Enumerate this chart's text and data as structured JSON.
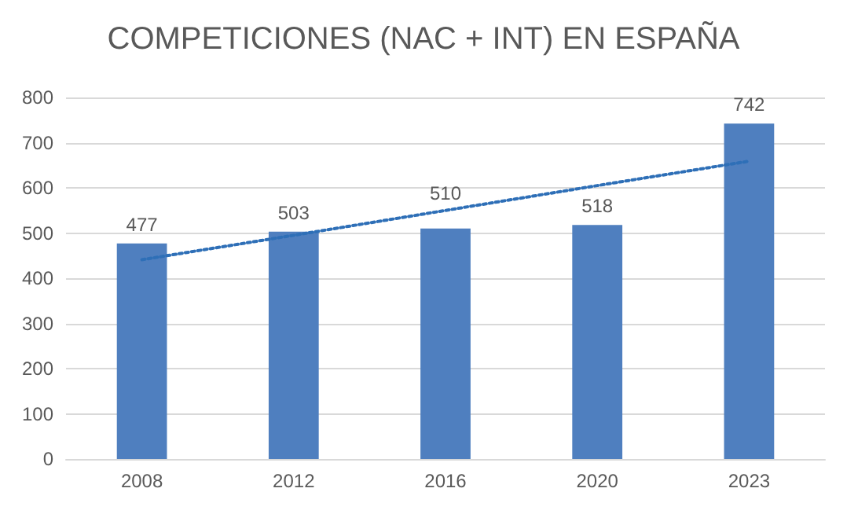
{
  "chart_data": {
    "type": "bar",
    "title": "COMPETICIONES (NAC + INT) EN ESPAÑA",
    "categories": [
      "2008",
      "2012",
      "2016",
      "2020",
      "2023"
    ],
    "series": [
      {
        "color": "#4f7fbf",
        "values": [
          477,
          503,
          510,
          518,
          742
        ],
        "value_labels": [
          "477",
          "503",
          "510",
          "518",
          "742"
        ]
      },
      {
        "type": "line",
        "color": "#2e6fb7",
        "line_style": "dotted",
        "marker": "none",
        "values": [
          441,
          495,
          550,
          605,
          659
        ]
      }
    ],
    "ylim": [
      0,
      800
    ],
    "yticks": [
      0,
      100,
      200,
      300,
      400,
      500,
      600,
      700,
      800
    ],
    "grid": "y"
  }
}
